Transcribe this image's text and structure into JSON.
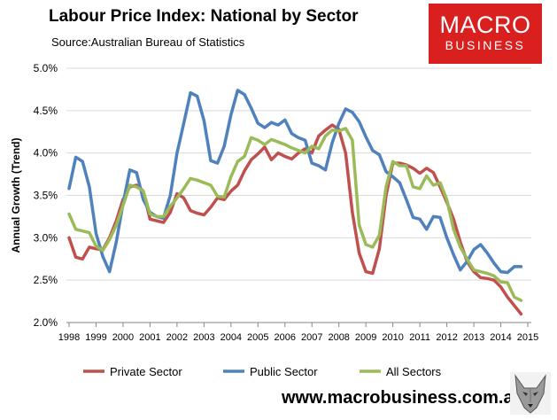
{
  "header": {
    "title": "Labour Price Index: National by Sector",
    "source": "Source:Australian Bureau of Statistics"
  },
  "logo": {
    "line1": "MACRO",
    "line2": "BUSINESS",
    "color": "#d9201f"
  },
  "footer": {
    "website": "www.macrobusiness.com.au"
  },
  "chart_data": {
    "type": "line",
    "title": "Labour Price Index: National by Sector",
    "xlabel": "",
    "ylabel": "Annual Growth (Trend)",
    "ylim": [
      2.0,
      5.0
    ],
    "xlim": [
      1998,
      2015
    ],
    "yticks": [
      2.0,
      2.5,
      3.0,
      3.5,
      4.0,
      4.5,
      5.0
    ],
    "ytick_labels": [
      "2.0%",
      "2.5%",
      "3.0%",
      "3.5%",
      "4.0%",
      "4.5%",
      "5.0%"
    ],
    "xticks": [
      1998,
      1999,
      2000,
      2001,
      2002,
      2003,
      2004,
      2005,
      2006,
      2007,
      2008,
      2009,
      2010,
      2011,
      2012,
      2013,
      2014,
      2015
    ],
    "xtick_labels": [
      "1998",
      "1999",
      "2000",
      "2001",
      "2002",
      "2003",
      "2004",
      "2005",
      "2006",
      "2007",
      "2008",
      "2009",
      "2010",
      "2011",
      "2012",
      "2013",
      "2014",
      "2015"
    ],
    "grid": "horizontal",
    "legend_position": "bottom",
    "x": [
      1998.0,
      1998.25,
      1998.5,
      1998.75,
      1999.0,
      1999.25,
      1999.5,
      1999.75,
      2000.0,
      2000.25,
      2000.5,
      2000.75,
      2001.0,
      2001.25,
      2001.5,
      2001.75,
      2002.0,
      2002.25,
      2002.5,
      2002.75,
      2003.0,
      2003.25,
      2003.5,
      2003.75,
      2004.0,
      2004.25,
      2004.5,
      2004.75,
      2005.0,
      2005.25,
      2005.5,
      2005.75,
      2006.0,
      2006.25,
      2006.5,
      2006.75,
      2007.0,
      2007.25,
      2007.5,
      2007.75,
      2008.0,
      2008.25,
      2008.5,
      2008.75,
      2009.0,
      2009.25,
      2009.5,
      2009.75,
      2010.0,
      2010.25,
      2010.5,
      2010.75,
      2011.0,
      2011.25,
      2011.5,
      2011.75,
      2012.0,
      2012.25,
      2012.5,
      2012.75,
      2013.0,
      2013.25,
      2013.5,
      2013.75,
      2014.0,
      2014.25,
      2014.5,
      2014.75
    ],
    "series": [
      {
        "name": "Private Sector",
        "color": "#c0504d",
        "values": [
          3.0,
          2.77,
          2.75,
          2.89,
          2.87,
          2.86,
          3.0,
          3.2,
          3.45,
          3.6,
          3.62,
          3.55,
          3.22,
          3.2,
          3.18,
          3.3,
          3.52,
          3.47,
          3.32,
          3.29,
          3.27,
          3.36,
          3.47,
          3.45,
          3.55,
          3.62,
          3.79,
          3.92,
          3.99,
          4.07,
          3.92,
          4.0,
          3.96,
          3.93,
          4.0,
          4.05,
          4.0,
          4.2,
          4.27,
          4.33,
          4.28,
          4.0,
          3.3,
          2.82,
          2.6,
          2.58,
          2.87,
          3.5,
          3.88,
          3.88,
          3.86,
          3.82,
          3.76,
          3.82,
          3.77,
          3.6,
          3.42,
          3.22,
          2.95,
          2.72,
          2.6,
          2.53,
          2.52,
          2.5,
          2.42,
          2.3,
          2.2,
          2.1
        ]
      },
      {
        "name": "Public Sector",
        "color": "#4f81bd",
        "values": [
          3.58,
          3.95,
          3.9,
          3.6,
          3.05,
          2.78,
          2.6,
          2.95,
          3.4,
          3.8,
          3.77,
          3.45,
          3.3,
          3.25,
          3.23,
          3.5,
          4.0,
          4.35,
          4.71,
          4.67,
          4.38,
          3.91,
          3.88,
          4.08,
          4.45,
          4.74,
          4.69,
          4.53,
          4.35,
          4.3,
          4.36,
          4.33,
          4.39,
          4.23,
          4.18,
          4.15,
          3.88,
          3.85,
          3.8,
          4.12,
          4.35,
          4.52,
          4.48,
          4.37,
          4.19,
          4.03,
          3.98,
          3.78,
          3.72,
          3.65,
          3.45,
          3.24,
          3.22,
          3.1,
          3.25,
          3.24,
          3.0,
          2.8,
          2.62,
          2.72,
          2.86,
          2.92,
          2.82,
          2.7,
          2.6,
          2.59,
          2.66,
          2.66
        ]
      },
      {
        "name": "All Sectors",
        "color": "#9bbb59",
        "values": [
          3.28,
          3.1,
          3.08,
          3.06,
          2.9,
          2.85,
          2.98,
          3.15,
          3.38,
          3.62,
          3.6,
          3.55,
          3.28,
          3.25,
          3.25,
          3.37,
          3.47,
          3.58,
          3.7,
          3.68,
          3.65,
          3.62,
          3.49,
          3.48,
          3.72,
          3.9,
          3.96,
          4.18,
          4.15,
          4.1,
          4.16,
          4.13,
          4.1,
          4.06,
          4.03,
          4.0,
          4.08,
          4.05,
          4.2,
          4.27,
          4.26,
          4.29,
          4.15,
          3.15,
          2.92,
          2.89,
          3.03,
          3.6,
          3.9,
          3.85,
          3.85,
          3.6,
          3.58,
          3.73,
          3.62,
          3.65,
          3.45,
          3.1,
          2.89,
          2.75,
          2.62,
          2.6,
          2.58,
          2.55,
          2.48,
          2.47,
          2.3,
          2.26
        ]
      }
    ]
  }
}
